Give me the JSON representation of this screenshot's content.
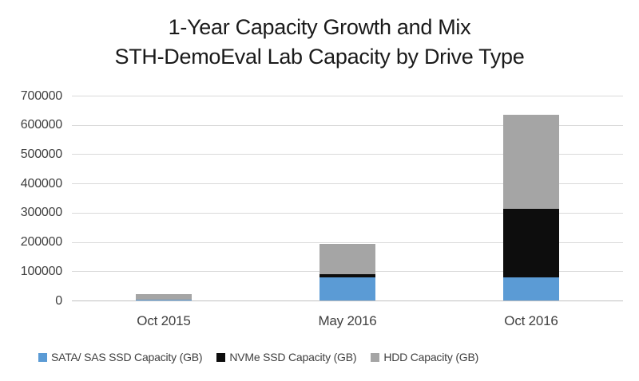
{
  "title": {
    "line1": "1-Year Capacity Growth and Mix",
    "line2": "STH-DemoEval Lab Capacity by Drive Type"
  },
  "chart_data": {
    "type": "bar",
    "stacked": true,
    "title": "1-Year Capacity Growth and Mix — STH-DemoEval Lab Capacity by Drive Type",
    "xlabel": "",
    "ylabel": "",
    "categories": [
      "Oct 2015",
      "May 2016",
      "Oct 2016"
    ],
    "series": [
      {
        "name": "SATA/ SAS SSD Capacity (GB)",
        "color": "#5B9BD5",
        "values": [
          4000,
          80000,
          80000
        ]
      },
      {
        "name": "NVMe SSD Capacity (GB)",
        "color": "#0D0D0D",
        "values": [
          0,
          10000,
          235000
        ]
      },
      {
        "name": "HDD Capacity (GB)",
        "color": "#A5A5A5",
        "values": [
          18000,
          105000,
          320000
        ]
      }
    ],
    "totals": [
      22000,
      195000,
      635000
    ],
    "ylim": [
      0,
      700000
    ],
    "ytick_step": 100000,
    "ytick_labels": [
      "0",
      "100000",
      "200000",
      "300000",
      "400000",
      "500000",
      "600000",
      "700000"
    ],
    "grid": true,
    "gridline_color": "#D9D9D9",
    "axis_line_color": "#BFBFBF",
    "tick_label_color": "#404040",
    "background_color": "#FFFFFF",
    "legend_position": "bottom"
  }
}
